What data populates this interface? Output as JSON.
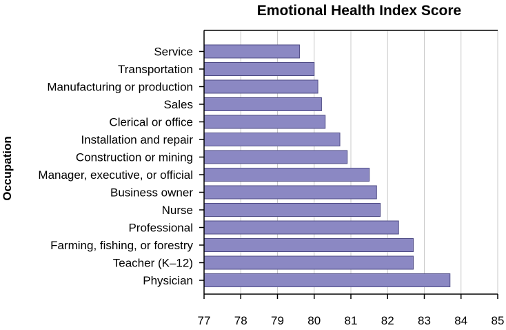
{
  "chart_data": {
    "type": "bar",
    "orientation": "horizontal",
    "title": "Emotional Health Index Score",
    "xlabel": "",
    "ylabel": "Occupation",
    "categories": [
      "Service",
      "Transportation",
      "Manufacturing or production",
      "Sales",
      "Clerical or office",
      "Installation and repair",
      "Construction or mining",
      "Manager, executive, or official",
      "Business owner",
      "Nurse",
      "Professional",
      "Farming, fishing, or forestry",
      "Teacher (K–12)",
      "Physician"
    ],
    "values": [
      79.6,
      80.0,
      80.1,
      80.2,
      80.3,
      80.7,
      80.9,
      81.5,
      81.7,
      81.8,
      82.3,
      82.7,
      82.7,
      83.7
    ],
    "xlim": [
      77,
      85
    ],
    "xticks": [
      "77",
      "78",
      "79",
      "80",
      "81",
      "82",
      "83",
      "84",
      "85"
    ],
    "grid": "vertical",
    "legend": "none",
    "bar_color": "#8b88c3",
    "bar_stroke": "#4f4c86",
    "grid_color": "#c8c8c8",
    "axis_color": "#000000"
  }
}
